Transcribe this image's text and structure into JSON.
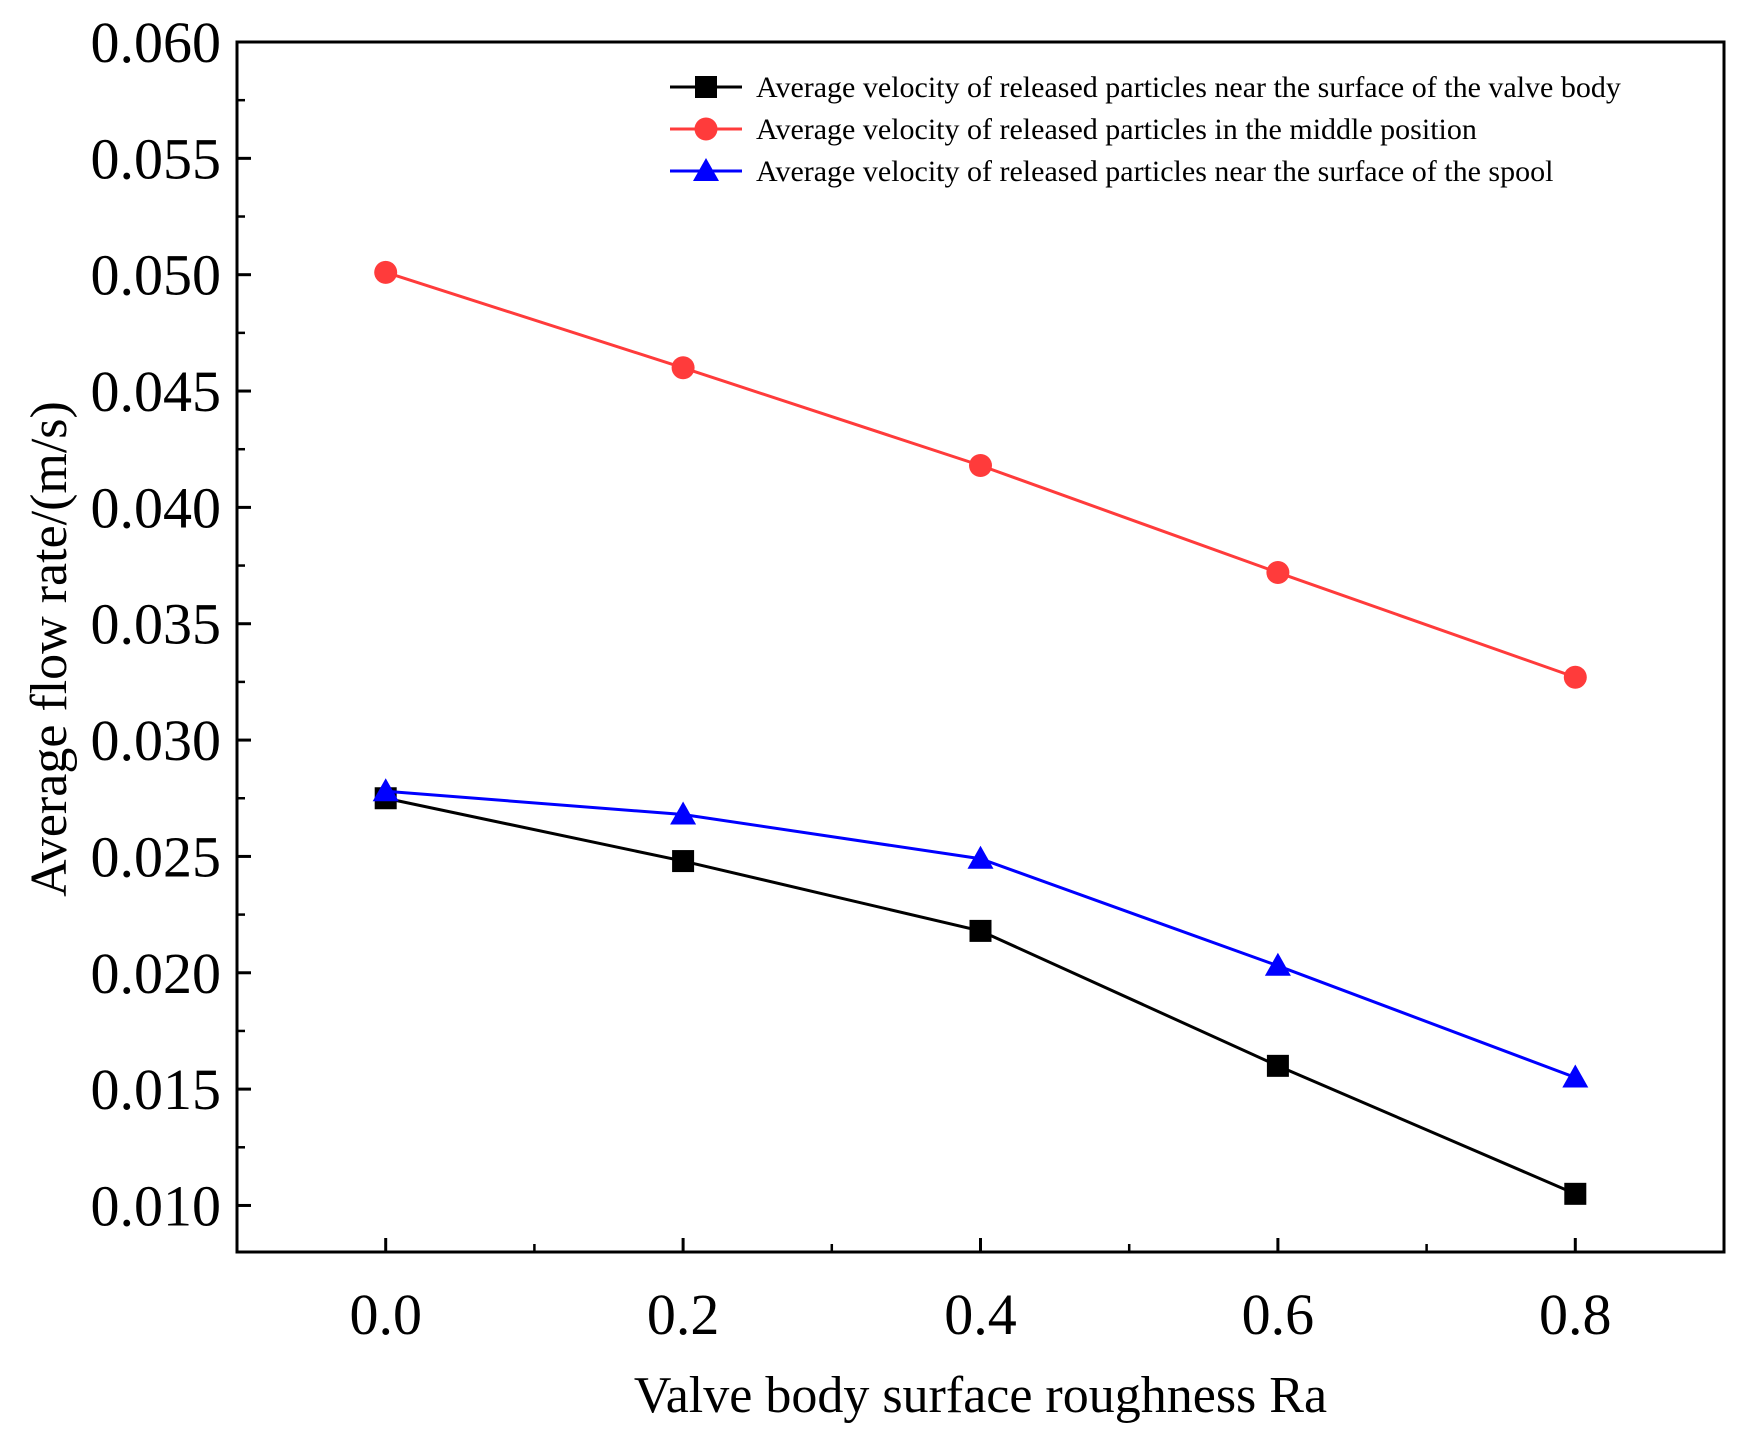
{
  "chart_data": {
    "type": "line",
    "title": "",
    "xlabel": "Valve body surface roughness Ra",
    "ylabel": "Average flow rate/(m/s)",
    "xlim": [
      -0.1,
      0.9
    ],
    "ylim": [
      0.008,
      0.06
    ],
    "x": [
      0.0,
      0.2,
      0.4,
      0.6,
      0.8
    ],
    "x_ticks": [
      "0.0",
      "0.2",
      "0.4",
      "0.6",
      "0.8"
    ],
    "y_ticks": [
      "0.010",
      "0.015",
      "0.020",
      "0.025",
      "0.030",
      "0.035",
      "0.040",
      "0.045",
      "0.050",
      "0.055",
      "0.060"
    ],
    "grid": false,
    "legend_position": "top-right",
    "series": [
      {
        "name": "Average velocity of released particles near the surface of the valve body",
        "color": "#000000",
        "marker": "square",
        "values": [
          0.0275,
          0.0248,
          0.0218,
          0.016,
          0.0105
        ]
      },
      {
        "name": "Average velocity of released particles in the middle position",
        "color": "#ff3b3b",
        "marker": "circle",
        "values": [
          0.0501,
          0.046,
          0.0418,
          0.0372,
          0.0327
        ]
      },
      {
        "name": "Average velocity of released particles near the surface of the spool",
        "color": "#0000ff",
        "marker": "triangle",
        "values": [
          0.0278,
          0.0268,
          0.0249,
          0.0203,
          0.0155
        ]
      }
    ]
  }
}
